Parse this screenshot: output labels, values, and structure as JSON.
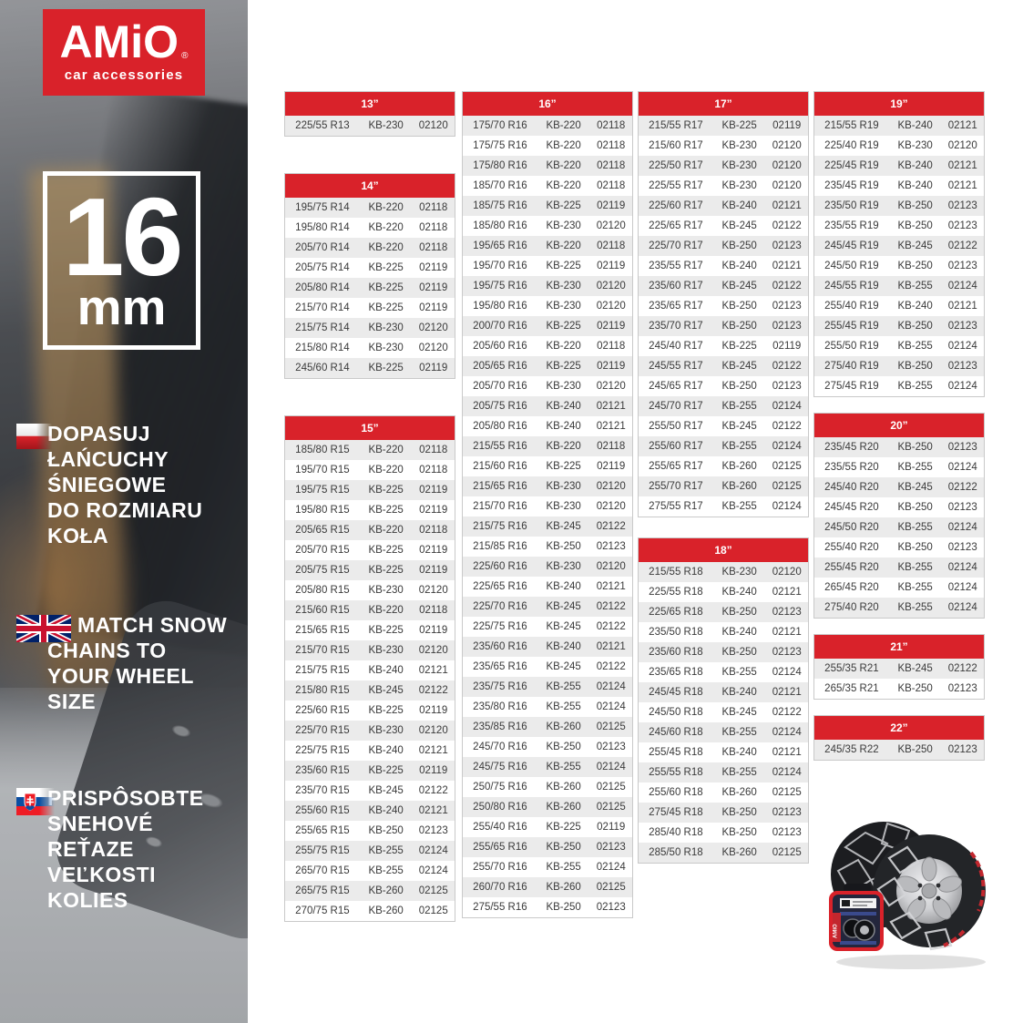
{
  "brand": {
    "name": "AMiO",
    "registered": "®",
    "tagline": "car accessories"
  },
  "badge": {
    "value": "16",
    "unit": "mm"
  },
  "messages": [
    {
      "lang": "pl",
      "flag": "poland-flag-icon",
      "lines": [
        "DOPASUJ",
        "ŁAŃCUCHY",
        "ŚNIEGOWE",
        "DO ROZMIARU",
        "KOŁA"
      ]
    },
    {
      "lang": "en",
      "flag": "uk-flag-icon",
      "lines": [
        "MATCH SNOW",
        "CHAINS TO",
        "YOUR WHEEL",
        "SIZE"
      ]
    },
    {
      "lang": "sk",
      "flag": "slovakia-flag-icon",
      "lines": [
        "PRISPÔSOBTE",
        "SNEHOVÉ",
        "REŤAZE",
        "VEĽKOSTI",
        "KOLIES"
      ]
    }
  ],
  "colors": {
    "accent_red": "#d9222a",
    "row_alt": "#ebebeb",
    "row_text": "#3a3a3a",
    "table_border": "#c9c9c9"
  },
  "columns": [
    {
      "tables": [
        {
          "title": "13”",
          "rows": [
            [
              "225/55 R13",
              "KB-230",
              "02120"
            ]
          ]
        },
        {
          "title": "14”",
          "rows": [
            [
              "195/75 R14",
              "KB-220",
              "02118"
            ],
            [
              "195/80 R14",
              "KB-220",
              "02118"
            ],
            [
              "205/70 R14",
              "KB-220",
              "02118"
            ],
            [
              "205/75 R14",
              "KB-225",
              "02119"
            ],
            [
              "205/80 R14",
              "KB-225",
              "02119"
            ],
            [
              "215/70 R14",
              "KB-225",
              "02119"
            ],
            [
              "215/75 R14",
              "KB-230",
              "02120"
            ],
            [
              "215/80 R14",
              "KB-230",
              "02120"
            ],
            [
              "245/60 R14",
              "KB-225",
              "02119"
            ]
          ]
        },
        {
          "title": "15”",
          "rows": [
            [
              "185/80 R15",
              "KB-220",
              "02118"
            ],
            [
              "195/70 R15",
              "KB-220",
              "02118"
            ],
            [
              "195/75 R15",
              "KB-225",
              "02119"
            ],
            [
              "195/80 R15",
              "KB-225",
              "02119"
            ],
            [
              "205/65 R15",
              "KB-220",
              "02118"
            ],
            [
              "205/70 R15",
              "KB-225",
              "02119"
            ],
            [
              "205/75 R15",
              "KB-225",
              "02119"
            ],
            [
              "205/80 R15",
              "KB-230",
              "02120"
            ],
            [
              "215/60 R15",
              "KB-220",
              "02118"
            ],
            [
              "215/65 R15",
              "KB-225",
              "02119"
            ],
            [
              "215/70 R15",
              "KB-230",
              "02120"
            ],
            [
              "215/75 R15",
              "KB-240",
              "02121"
            ],
            [
              "215/80 R15",
              "KB-245",
              "02122"
            ],
            [
              "225/60 R15",
              "KB-225",
              "02119"
            ],
            [
              "225/70 R15",
              "KB-230",
              "02120"
            ],
            [
              "225/75 R15",
              "KB-240",
              "02121"
            ],
            [
              "235/60 R15",
              "KB-225",
              "02119"
            ],
            [
              "235/70 R15",
              "KB-245",
              "02122"
            ],
            [
              "255/60 R15",
              "KB-240",
              "02121"
            ],
            [
              "255/65 R15",
              "KB-250",
              "02123"
            ],
            [
              "255/75 R15",
              "KB-255",
              "02124"
            ],
            [
              "265/70 R15",
              "KB-255",
              "02124"
            ],
            [
              "265/75 R15",
              "KB-260",
              "02125"
            ],
            [
              "270/75 R15",
              "KB-260",
              "02125"
            ]
          ]
        }
      ]
    },
    {
      "tables": [
        {
          "title": "16”",
          "rows": [
            [
              "175/70 R16",
              "KB-220",
              "02118"
            ],
            [
              "175/75 R16",
              "KB-220",
              "02118"
            ],
            [
              "175/80 R16",
              "KB-220",
              "02118"
            ],
            [
              "185/70 R16",
              "KB-220",
              "02118"
            ],
            [
              "185/75 R16",
              "KB-225",
              "02119"
            ],
            [
              "185/80 R16",
              "KB-230",
              "02120"
            ],
            [
              "195/65 R16",
              "KB-220",
              "02118"
            ],
            [
              "195/70 R16",
              "KB-225",
              "02119"
            ],
            [
              "195/75 R16",
              "KB-230",
              "02120"
            ],
            [
              "195/80 R16",
              "KB-230",
              "02120"
            ],
            [
              "200/70 R16",
              "KB-225",
              "02119"
            ],
            [
              "205/60 R16",
              "KB-220",
              "02118"
            ],
            [
              "205/65 R16",
              "KB-225",
              "02119"
            ],
            [
              "205/70 R16",
              "KB-230",
              "02120"
            ],
            [
              "205/75 R16",
              "KB-240",
              "02121"
            ],
            [
              "205/80 R16",
              "KB-240",
              "02121"
            ],
            [
              "215/55 R16",
              "KB-220",
              "02118"
            ],
            [
              "215/60 R16",
              "KB-225",
              "02119"
            ],
            [
              "215/65 R16",
              "KB-230",
              "02120"
            ],
            [
              "215/70 R16",
              "KB-230",
              "02120"
            ],
            [
              "215/75 R16",
              "KB-245",
              "02122"
            ],
            [
              "215/85 R16",
              "KB-250",
              "02123"
            ],
            [
              "225/60 R16",
              "KB-230",
              "02120"
            ],
            [
              "225/65 R16",
              "KB-240",
              "02121"
            ],
            [
              "225/70 R16",
              "KB-245",
              "02122"
            ],
            [
              "225/75 R16",
              "KB-245",
              "02122"
            ],
            [
              "235/60 R16",
              "KB-240",
              "02121"
            ],
            [
              "235/65 R16",
              "KB-245",
              "02122"
            ],
            [
              "235/75 R16",
              "KB-255",
              "02124"
            ],
            [
              "235/80 R16",
              "KB-255",
              "02124"
            ],
            [
              "235/85 R16",
              "KB-260",
              "02125"
            ],
            [
              "245/70 R16",
              "KB-250",
              "02123"
            ],
            [
              "245/75 R16",
              "KB-255",
              "02124"
            ],
            [
              "250/75 R16",
              "KB-260",
              "02125"
            ],
            [
              "250/80 R16",
              "KB-260",
              "02125"
            ],
            [
              "255/40 R16",
              "KB-225",
              "02119"
            ],
            [
              "255/65 R16",
              "KB-250",
              "02123"
            ],
            [
              "255/70 R16",
              "KB-255",
              "02124"
            ],
            [
              "260/70 R16",
              "KB-260",
              "02125"
            ],
            [
              "275/55 R16",
              "KB-250",
              "02123"
            ]
          ]
        }
      ]
    },
    {
      "tables": [
        {
          "title": "17”",
          "rows": [
            [
              "215/55 R17",
              "KB-225",
              "02119"
            ],
            [
              "215/60 R17",
              "KB-230",
              "02120"
            ],
            [
              "225/50 R17",
              "KB-230",
              "02120"
            ],
            [
              "225/55 R17",
              "KB-230",
              "02120"
            ],
            [
              "225/60 R17",
              "KB-240",
              "02121"
            ],
            [
              "225/65 R17",
              "KB-245",
              "02122"
            ],
            [
              "225/70 R17",
              "KB-250",
              "02123"
            ],
            [
              "235/55 R17",
              "KB-240",
              "02121"
            ],
            [
              "235/60 R17",
              "KB-245",
              "02122"
            ],
            [
              "235/65 R17",
              "KB-250",
              "02123"
            ],
            [
              "235/70 R17",
              "KB-250",
              "02123"
            ],
            [
              "245/40 R17",
              "KB-225",
              "02119"
            ],
            [
              "245/55 R17",
              "KB-245",
              "02122"
            ],
            [
              "245/65 R17",
              "KB-250",
              "02123"
            ],
            [
              "245/70 R17",
              "KB-255",
              "02124"
            ],
            [
              "255/50 R17",
              "KB-245",
              "02122"
            ],
            [
              "255/60 R17",
              "KB-255",
              "02124"
            ],
            [
              "255/65 R17",
              "KB-260",
              "02125"
            ],
            [
              "255/70 R17",
              "KB-260",
              "02125"
            ],
            [
              "275/55 R17",
              "KB-255",
              "02124"
            ]
          ]
        },
        {
          "title": "18”",
          "rows": [
            [
              "215/55 R18",
              "KB-230",
              "02120"
            ],
            [
              "225/55 R18",
              "KB-240",
              "02121"
            ],
            [
              "225/65 R18",
              "KB-250",
              "02123"
            ],
            [
              "235/50 R18",
              "KB-240",
              "02121"
            ],
            [
              "235/60 R18",
              "KB-250",
              "02123"
            ],
            [
              "235/65 R18",
              "KB-255",
              "02124"
            ],
            [
              "245/45 R18",
              "KB-240",
              "02121"
            ],
            [
              "245/50 R18",
              "KB-245",
              "02122"
            ],
            [
              "245/60 R18",
              "KB-255",
              "02124"
            ],
            [
              "255/45 R18",
              "KB-240",
              "02121"
            ],
            [
              "255/55 R18",
              "KB-255",
              "02124"
            ],
            [
              "255/60 R18",
              "KB-260",
              "02125"
            ],
            [
              "275/45 R18",
              "KB-250",
              "02123"
            ],
            [
              "285/40 R18",
              "KB-250",
              "02123"
            ],
            [
              "285/50 R18",
              "KB-260",
              "02125"
            ]
          ]
        }
      ]
    },
    {
      "tables": [
        {
          "title": "19”",
          "rows": [
            [
              "215/55 R19",
              "KB-240",
              "02121"
            ],
            [
              "225/40 R19",
              "KB-230",
              "02120"
            ],
            [
              "225/45 R19",
              "KB-240",
              "02121"
            ],
            [
              "235/45 R19",
              "KB-240",
              "02121"
            ],
            [
              "235/50 R19",
              "KB-250",
              "02123"
            ],
            [
              "235/55 R19",
              "KB-250",
              "02123"
            ],
            [
              "245/45 R19",
              "KB-245",
              "02122"
            ],
            [
              "245/50 R19",
              "KB-250",
              "02123"
            ],
            [
              "245/55 R19",
              "KB-255",
              "02124"
            ],
            [
              "255/40 R19",
              "KB-240",
              "02121"
            ],
            [
              "255/45 R19",
              "KB-250",
              "02123"
            ],
            [
              "255/50 R19",
              "KB-255",
              "02124"
            ],
            [
              "275/40 R19",
              "KB-250",
              "02123"
            ],
            [
              "275/45 R19",
              "KB-255",
              "02124"
            ]
          ]
        },
        {
          "title": "20”",
          "rows": [
            [
              "235/45 R20",
              "KB-250",
              "02123"
            ],
            [
              "235/55 R20",
              "KB-255",
              "02124"
            ],
            [
              "245/40 R20",
              "KB-245",
              "02122"
            ],
            [
              "245/45 R20",
              "KB-250",
              "02123"
            ],
            [
              "245/50 R20",
              "KB-255",
              "02124"
            ],
            [
              "255/40 R20",
              "KB-250",
              "02123"
            ],
            [
              "255/45 R20",
              "KB-255",
              "02124"
            ],
            [
              "265/45 R20",
              "KB-255",
              "02124"
            ],
            [
              "275/40 R20",
              "KB-255",
              "02124"
            ]
          ]
        },
        {
          "title": "21”",
          "rows": [
            [
              "255/35 R21",
              "KB-245",
              "02122"
            ],
            [
              "265/35 R21",
              "KB-250",
              "02123"
            ]
          ]
        },
        {
          "title": "22”",
          "rows": [
            [
              "245/35 R22",
              "KB-250",
              "02123"
            ]
          ]
        }
      ]
    }
  ]
}
